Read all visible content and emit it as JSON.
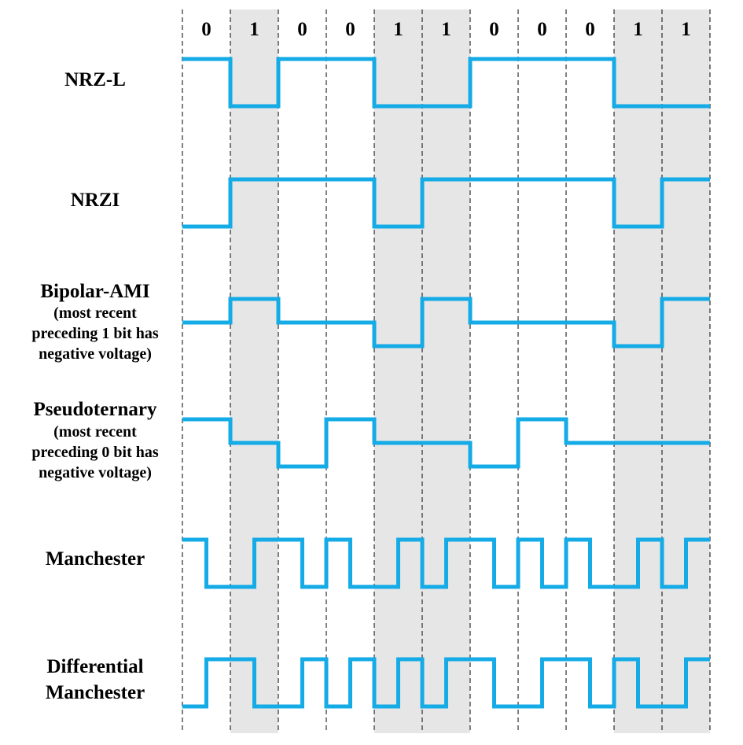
{
  "bits": [
    "0",
    "1",
    "0",
    "0",
    "1",
    "1",
    "0",
    "0",
    "0",
    "1",
    "1"
  ],
  "colors": {
    "wave": "#14abe6",
    "shade": "#e6e6e6",
    "divider": "#000000",
    "text": "#000000"
  },
  "rows": [
    {
      "id": "nrz-l",
      "title": [
        "NRZ-L"
      ],
      "sub": [],
      "levels": [
        1,
        0,
        1,
        1,
        0,
        0,
        1,
        1,
        1,
        0,
        0
      ]
    },
    {
      "id": "nrzi",
      "title": [
        "NRZI"
      ],
      "sub": [],
      "levels": [
        0,
        1,
        1,
        1,
        0,
        1,
        1,
        1,
        1,
        0,
        1
      ]
    },
    {
      "id": "bipolar-ami",
      "title": [
        "Bipolar-AMI"
      ],
      "sub": [
        "(most recent",
        "preceding 1 bit has",
        "negative voltage)"
      ],
      "levels": [
        0,
        1,
        0,
        0,
        -1,
        1,
        0,
        0,
        0,
        -1,
        1
      ]
    },
    {
      "id": "pseudoternary",
      "title": [
        "Pseudoternary"
      ],
      "sub": [
        "(most recent",
        "preceding 0 bit has",
        "negative voltage)"
      ],
      "levels": [
        1,
        0,
        -1,
        1,
        0,
        0,
        -1,
        1,
        0,
        0,
        0
      ]
    },
    {
      "id": "manchester",
      "title": [
        "Manchester"
      ],
      "sub": [],
      "halves": [
        [
          1,
          0
        ],
        [
          0,
          1
        ],
        [
          1,
          0
        ],
        [
          1,
          0
        ],
        [
          0,
          1
        ],
        [
          0,
          1
        ],
        [
          1,
          0
        ],
        [
          1,
          0
        ],
        [
          1,
          0
        ],
        [
          0,
          1
        ],
        [
          0,
          1
        ]
      ]
    },
    {
      "id": "differential-manchester",
      "title": [
        "Differential",
        "Manchester"
      ],
      "sub": [],
      "halves": [
        [
          0,
          1
        ],
        [
          1,
          0
        ],
        [
          0,
          1
        ],
        [
          0,
          1
        ],
        [
          0,
          1
        ],
        [
          0,
          1
        ],
        [
          1,
          0
        ],
        [
          0,
          1
        ],
        [
          1,
          0
        ],
        [
          1,
          0
        ],
        [
          0,
          1
        ]
      ]
    }
  ]
}
